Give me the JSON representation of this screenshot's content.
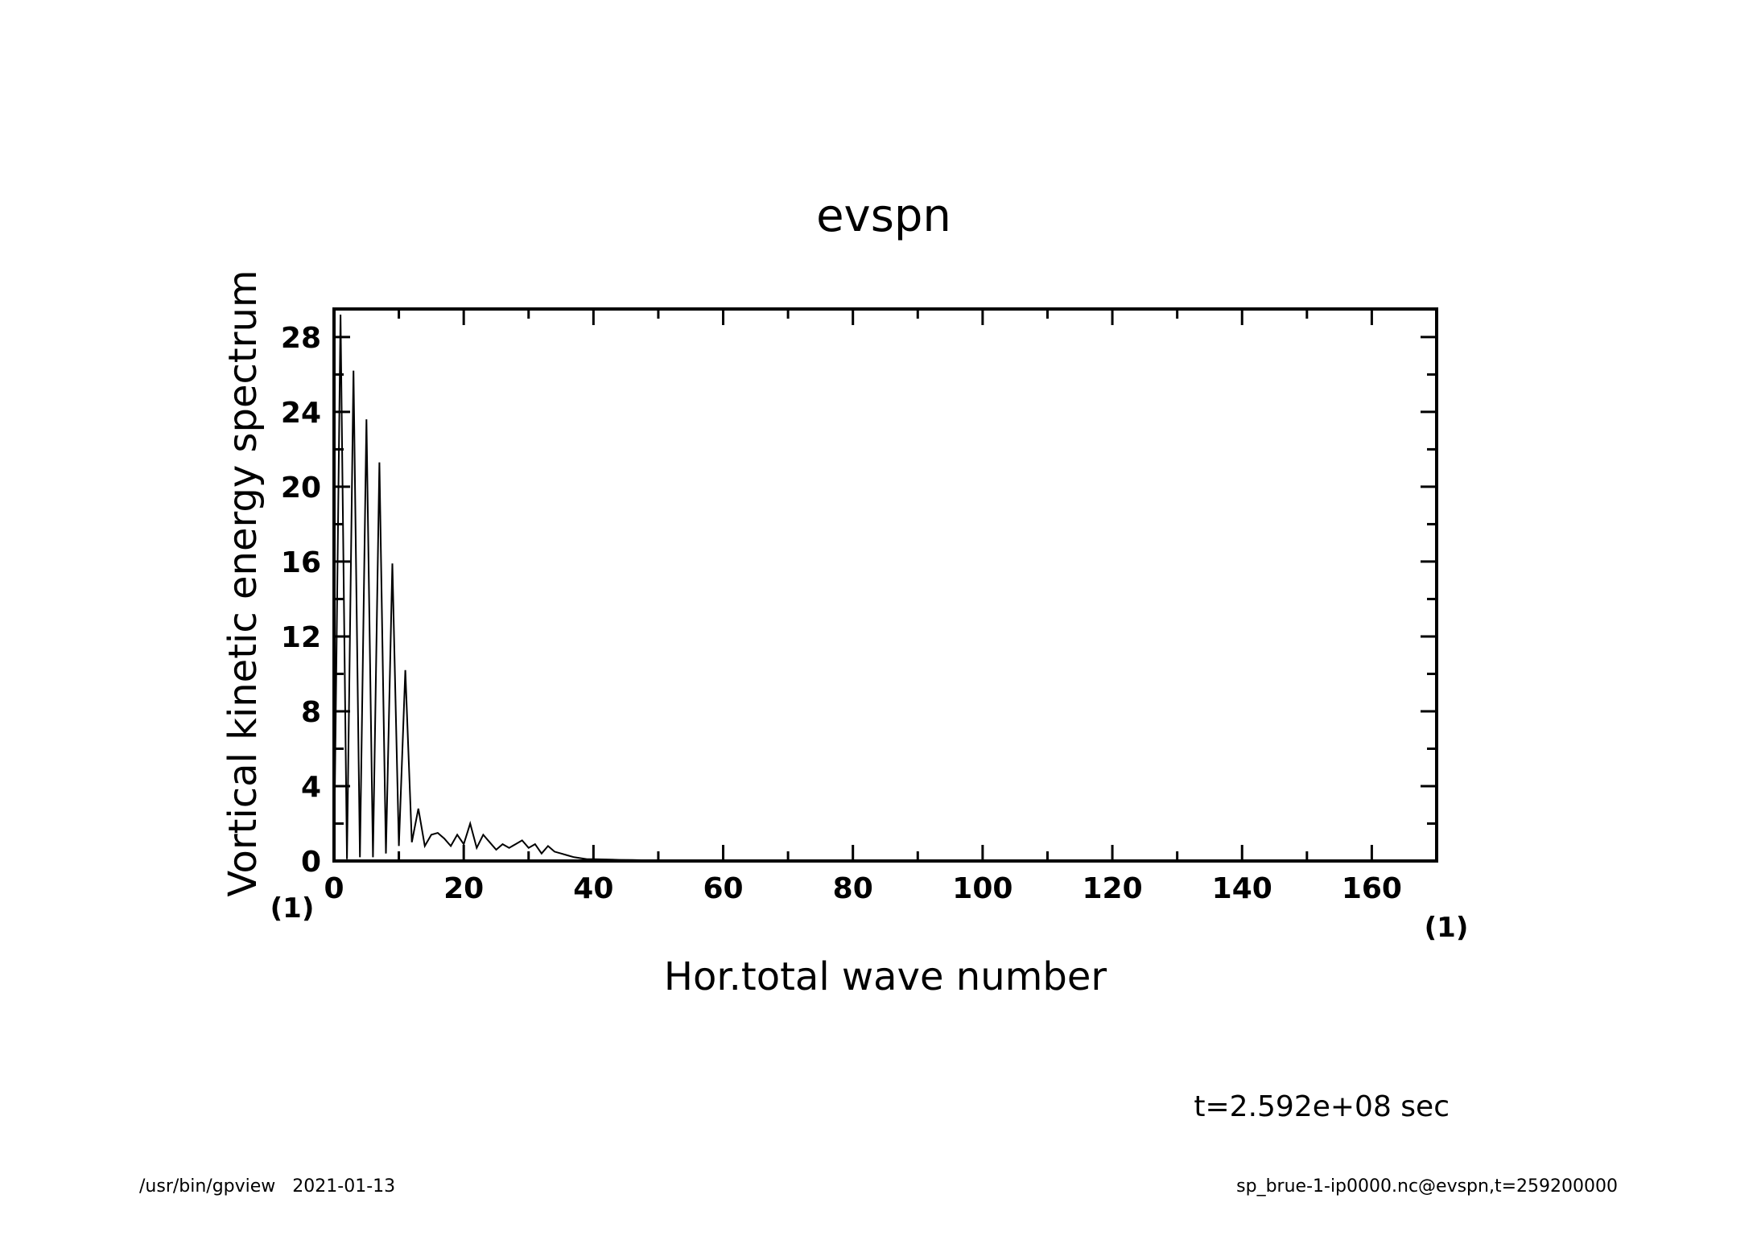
{
  "chart_data": {
    "type": "line",
    "title": "evspn",
    "xlabel": "Hor.total wave number",
    "ylabel": "Vortical kinetic energy spectrum",
    "x_unit": "(1)",
    "y_unit": "(1)",
    "xlim": [
      0,
      170
    ],
    "ylim": [
      0,
      29.5
    ],
    "xticks": [
      0,
      20,
      40,
      60,
      80,
      100,
      120,
      140,
      160
    ],
    "yticks": [
      0,
      4,
      8,
      12,
      16,
      20,
      24,
      28
    ],
    "grid": false,
    "legend": "none",
    "series": [
      {
        "x": [
          0,
          1,
          2,
          3,
          4,
          5,
          6,
          7,
          8,
          9,
          10,
          11,
          12,
          13,
          14,
          15,
          16,
          17,
          18,
          19,
          20,
          21,
          22,
          23,
          24,
          25,
          26,
          27,
          28,
          29,
          30,
          31,
          32,
          33,
          34,
          35,
          36,
          37,
          38,
          39,
          40,
          42,
          44,
          46,
          48,
          50,
          55,
          60,
          70,
          80,
          90,
          100,
          120,
          140,
          160,
          170
        ],
        "y": [
          0,
          29.2,
          0.1,
          26.2,
          0.2,
          23.6,
          0.2,
          21.3,
          0.4,
          15.9,
          0.8,
          10.2,
          1.0,
          2.8,
          0.8,
          1.4,
          1.5,
          1.2,
          0.8,
          1.4,
          0.9,
          2.0,
          0.7,
          1.4,
          1.0,
          0.6,
          0.9,
          0.7,
          0.9,
          1.1,
          0.7,
          0.9,
          0.4,
          0.8,
          0.5,
          0.4,
          0.3,
          0.2,
          0.15,
          0.1,
          0.1,
          0.08,
          0.06,
          0.05,
          0.04,
          0.03,
          0.02,
          0.01,
          0.0,
          0.0,
          0.0,
          0.0,
          0.0,
          0.0,
          0.0,
          0.0
        ]
      }
    ]
  },
  "annotations": {
    "time": "t=2.592e+08 sec",
    "footer_left": "/usr/bin/gpview   2021-01-13",
    "footer_right": "sp_brue-1-ip0000.nc@evspn,t=259200000"
  }
}
